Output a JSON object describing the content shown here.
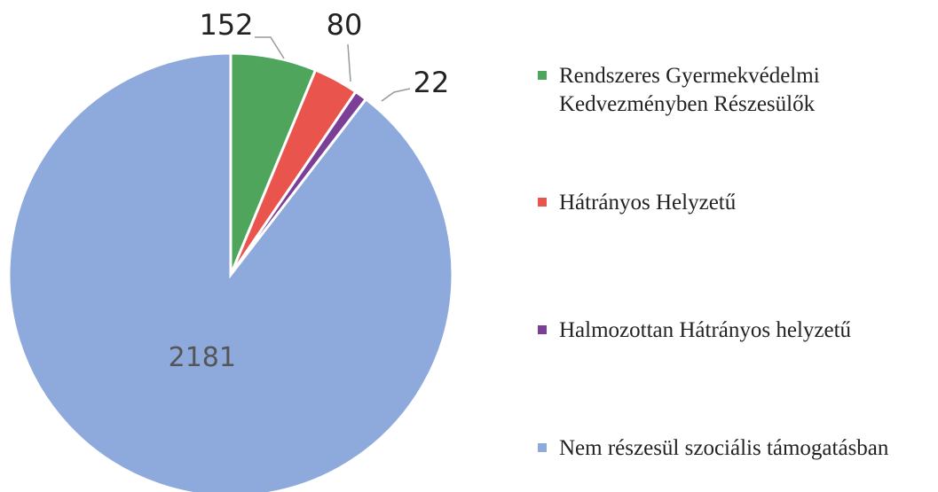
{
  "chart_data": {
    "type": "pie",
    "categories": [
      "Rendszeres Gyermekvédelmi Kedvezményben Részesülők",
      "Hátrányos Helyzetű",
      "Halmozottan Hátrányos helyzetű",
      "Nem részesül szociális támogatásban"
    ],
    "values": [
      152,
      80,
      22,
      2181
    ],
    "colors": [
      "#4fa55c",
      "#e9544c",
      "#7b3f98",
      "#8eaadc"
    ],
    "legend": "right"
  }
}
